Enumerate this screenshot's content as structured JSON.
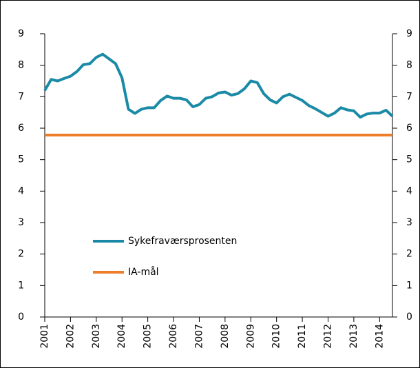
{
  "chart_data": {
    "type": "line",
    "xlim": [
      2001,
      2014.5
    ],
    "xticks": [
      2001,
      2002,
      2003,
      2004,
      2005,
      2006,
      2007,
      2008,
      2009,
      2010,
      2011,
      2012,
      2013,
      2014
    ],
    "ylim": [
      0,
      9
    ],
    "yticks": [
      0,
      1,
      2,
      3,
      4,
      5,
      6,
      7,
      8,
      9
    ],
    "y2lim": [
      0,
      9
    ],
    "y2ticks": [
      0,
      1,
      2,
      3,
      4,
      5,
      6,
      7,
      8,
      9
    ],
    "grid": false,
    "legend": "inside",
    "series": [
      {
        "name": "Sykefraværsprosenten",
        "color": "#1a8aa6",
        "x": [
          2001,
          2001.25,
          2001.5,
          2001.75,
          2002,
          2002.25,
          2002.5,
          2002.75,
          2003,
          2003.25,
          2003.5,
          2003.75,
          2004,
          2004.25,
          2004.5,
          2004.75,
          2005,
          2005.25,
          2005.5,
          2005.75,
          2006,
          2006.25,
          2006.5,
          2006.75,
          2007,
          2007.25,
          2007.5,
          2007.75,
          2008,
          2008.25,
          2008.5,
          2008.75,
          2009,
          2009.25,
          2009.5,
          2009.75,
          2010,
          2010.25,
          2010.5,
          2010.75,
          2011,
          2011.25,
          2011.5,
          2011.75,
          2012,
          2012.25,
          2012.5,
          2012.75,
          2013,
          2013.25,
          2013.5,
          2013.75,
          2014,
          2014.25,
          2014.5
        ],
        "values": [
          7.2,
          7.55,
          7.5,
          7.58,
          7.65,
          7.8,
          8.02,
          8.05,
          8.25,
          8.35,
          8.2,
          8.05,
          7.6,
          6.6,
          6.47,
          6.6,
          6.65,
          6.65,
          6.88,
          7.02,
          6.95,
          6.95,
          6.9,
          6.68,
          6.75,
          6.95,
          7.0,
          7.12,
          7.15,
          7.05,
          7.1,
          7.25,
          7.5,
          7.45,
          7.1,
          6.9,
          6.8,
          7.0,
          7.08,
          6.98,
          6.88,
          6.72,
          6.62,
          6.5,
          6.38,
          6.48,
          6.65,
          6.58,
          6.55,
          6.35,
          6.45,
          6.48,
          6.48,
          6.57,
          6.38
        ]
      },
      {
        "name": "IA-mål",
        "color": "#ee7d2a",
        "x": [
          2001,
          2014.5
        ],
        "values": [
          5.78,
          5.78
        ]
      }
    ]
  }
}
